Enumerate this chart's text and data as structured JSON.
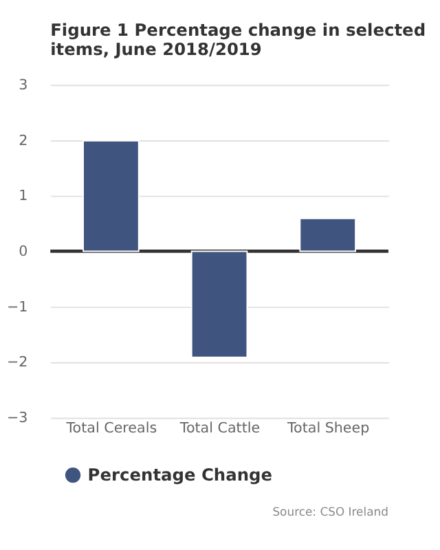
{
  "chart_data": {
    "type": "bar",
    "title": "Figure 1 Percentage change in selected items, June 2018/2019",
    "categories": [
      "Total Cereals",
      "Total Cattle",
      "Total Sheep"
    ],
    "series": [
      {
        "name": "Percentage Change",
        "color": "#3f547f",
        "values": [
          1.99,
          -1.91,
          0.59
        ]
      }
    ],
    "ylim": [
      -3,
      3
    ],
    "yticks": [
      -3,
      -2,
      -1,
      0,
      1,
      2,
      3
    ],
    "grid": "y",
    "legend": "bottom",
    "ref_lines": [
      {
        "axis": "y",
        "value": 0,
        "color": "#333333"
      }
    ],
    "annotations": [
      "Source: CSO Ireland"
    ]
  }
}
